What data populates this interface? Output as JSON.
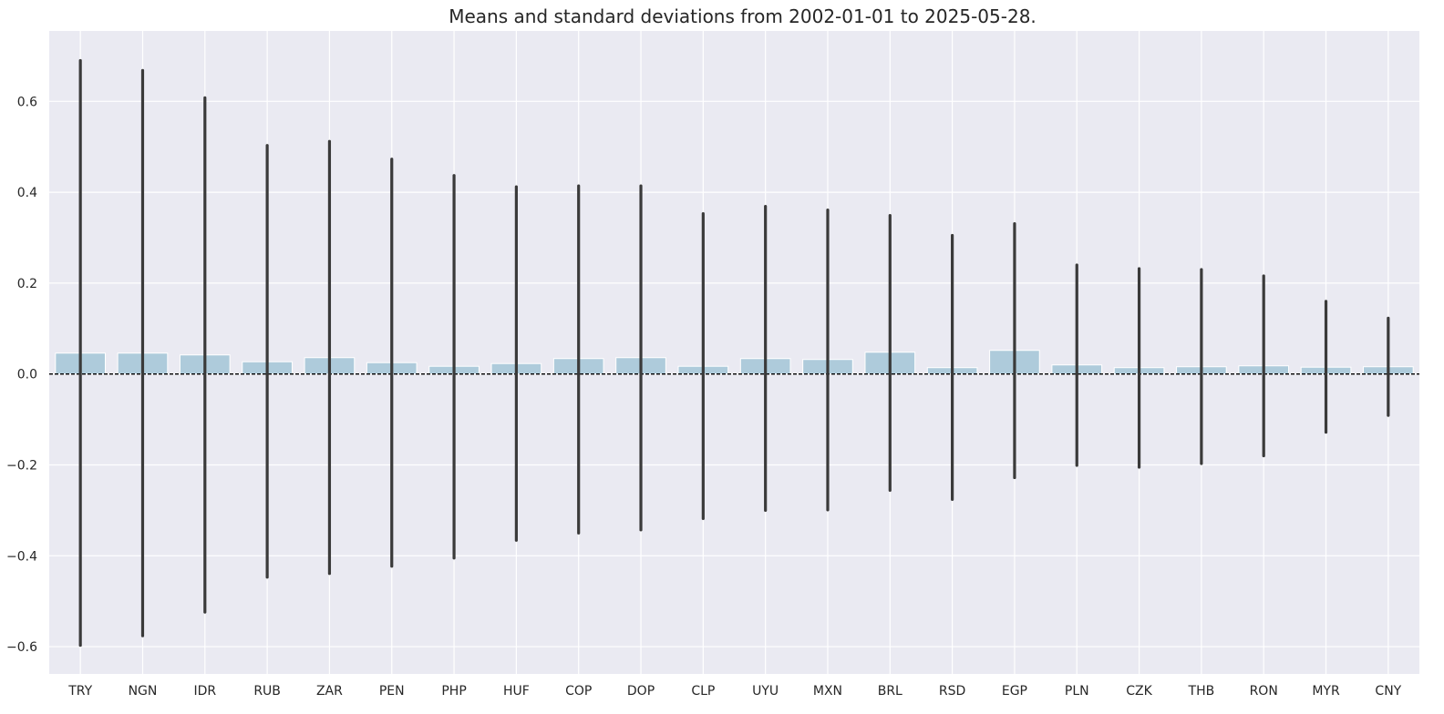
{
  "chart_data": {
    "type": "bar",
    "title": "Means and standard deviations from 2002-01-01 to 2025-05-28.",
    "xlabel": "",
    "ylabel": "",
    "ylim": [
      -0.66,
      0.755
    ],
    "yticks": [
      -0.6,
      -0.4,
      -0.2,
      0.0,
      0.2,
      0.4,
      0.6
    ],
    "ytick_labels": [
      "−0.6",
      "−0.4",
      "−0.2",
      "0.0",
      "0.2",
      "0.4",
      "0.6"
    ],
    "grid": true,
    "zero_line": true,
    "categories": [
      "TRY",
      "NGN",
      "IDR",
      "RUB",
      "ZAR",
      "PEN",
      "PHP",
      "HUF",
      "COP",
      "DOP",
      "CLP",
      "UYU",
      "MXN",
      "BRL",
      "RSD",
      "EGP",
      "PLN",
      "CZK",
      "THB",
      "RON",
      "MYR",
      "CNY"
    ],
    "values": [
      0.046,
      0.046,
      0.042,
      0.027,
      0.036,
      0.025,
      0.017,
      0.023,
      0.034,
      0.036,
      0.017,
      0.034,
      0.032,
      0.048,
      0.014,
      0.052,
      0.02,
      0.014,
      0.016,
      0.018,
      0.015,
      0.016
    ],
    "error_bars": {
      "upper": [
        0.69,
        0.668,
        0.608,
        0.503,
        0.512,
        0.473,
        0.437,
        0.412,
        0.414,
        0.414,
        0.353,
        0.369,
        0.361,
        0.349,
        0.305,
        0.331,
        0.24,
        0.232,
        0.23,
        0.216,
        0.16,
        0.123
      ],
      "lower": [
        -0.597,
        -0.576,
        -0.524,
        -0.447,
        -0.439,
        -0.423,
        -0.405,
        -0.366,
        -0.35,
        -0.343,
        -0.318,
        -0.3,
        -0.299,
        -0.256,
        -0.276,
        -0.228,
        -0.201,
        -0.205,
        -0.197,
        -0.18,
        -0.128,
        -0.091
      ]
    },
    "colors": {
      "bar": "#aecbdb",
      "error_bar": "#3a3a3a",
      "plot_bg": "#eaeaf2",
      "grid": "#ffffff",
      "zero_line": "#000000"
    }
  }
}
